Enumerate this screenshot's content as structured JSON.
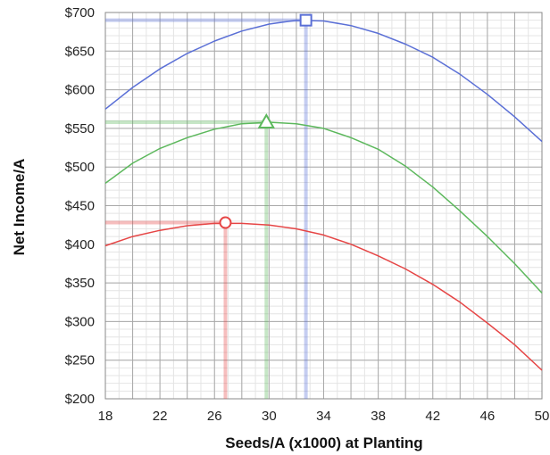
{
  "chart_data": {
    "type": "line",
    "title": "",
    "xlabel": "Seeds/A (x1000) at Planting",
    "ylabel": "Net Income/A",
    "xlim": [
      18,
      50
    ],
    "ylim": [
      200,
      700
    ],
    "x_ticks": [
      18,
      22,
      26,
      30,
      34,
      38,
      42,
      46,
      50
    ],
    "x_tick_labels": [
      "18",
      "22",
      "26",
      "30",
      "34",
      "38",
      "42",
      "46",
      "50"
    ],
    "x_minor_step": 1,
    "y_ticks": [
      200,
      250,
      300,
      350,
      400,
      450,
      500,
      550,
      600,
      650,
      700
    ],
    "y_tick_labels": [
      "$200",
      "$250",
      "$300",
      "$350",
      "$400",
      "$450",
      "$500",
      "$550",
      "$600",
      "$650",
      "$700"
    ],
    "y_minor_step": 10,
    "grid": true,
    "legend": "none",
    "series": [
      {
        "color": "#5a6fd6",
        "marker": "square",
        "x": [
          18,
          20,
          22,
          24,
          26,
          28,
          30,
          32,
          34,
          36,
          38,
          40,
          42,
          44,
          46,
          48,
          50
        ],
        "y": [
          575,
          603,
          627,
          647,
          663,
          676,
          685,
          690,
          689,
          683,
          673,
          659,
          642,
          620,
          594,
          565,
          533
        ],
        "optimum": {
          "x": 32.7,
          "y": 690
        }
      },
      {
        "color": "#5cb85c",
        "marker": "triangle",
        "x": [
          18,
          20,
          22,
          24,
          26,
          28,
          30,
          32,
          34,
          36,
          38,
          40,
          42,
          44,
          46,
          48,
          50
        ],
        "y": [
          479,
          505,
          524,
          538,
          549,
          556,
          558,
          556,
          550,
          538,
          523,
          501,
          474,
          443,
          410,
          375,
          337
        ],
        "optimum": {
          "x": 29.8,
          "y": 558
        }
      },
      {
        "color": "#e64545",
        "marker": "circle",
        "x": [
          18,
          20,
          22,
          24,
          26,
          28,
          30,
          32,
          34,
          36,
          38,
          40,
          42,
          44,
          46,
          48,
          50
        ],
        "y": [
          398,
          410,
          418,
          424,
          427,
          427,
          425,
          420,
          412,
          400,
          385,
          368,
          348,
          325,
          298,
          270,
          237
        ],
        "optimum": {
          "x": 26.8,
          "y": 428
        }
      }
    ]
  }
}
